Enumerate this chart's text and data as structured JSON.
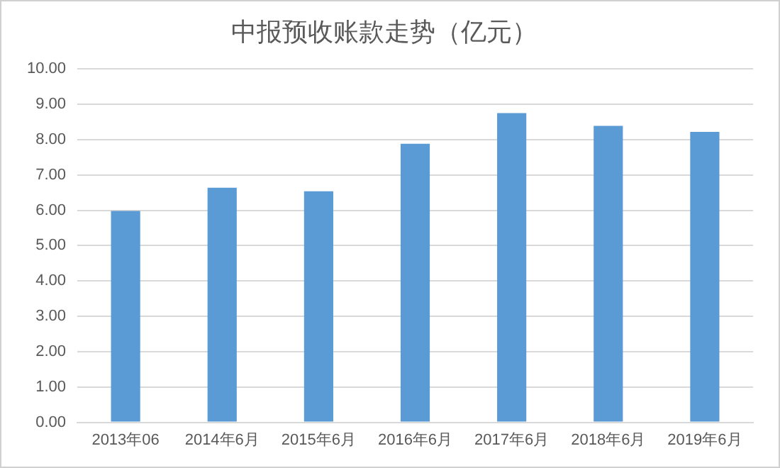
{
  "chart_data": {
    "type": "bar",
    "title": "中报预收账款走势（亿元）",
    "categories": [
      "2013年06",
      "2014年6月",
      "2015年6月",
      "2016年6月",
      "2017年6月",
      "2018年6月",
      "2019年6月"
    ],
    "values": [
      5.98,
      6.64,
      6.54,
      7.88,
      8.75,
      8.39,
      8.22
    ],
    "color": "#5b9bd5",
    "ylim": [
      0,
      10
    ],
    "yticks": [
      {
        "value": 0,
        "label": "0.00"
      },
      {
        "value": 1,
        "label": "1.00"
      },
      {
        "value": 2,
        "label": "2.00"
      },
      {
        "value": 3,
        "label": "3.00"
      },
      {
        "value": 4,
        "label": "4.00"
      },
      {
        "value": 5,
        "label": "5.00"
      },
      {
        "value": 6,
        "label": "6.00"
      },
      {
        "value": 7,
        "label": "7.00"
      },
      {
        "value": 8,
        "label": "8.00"
      },
      {
        "value": 9,
        "label": "9.00"
      },
      {
        "value": 10,
        "label": "10.00"
      }
    ],
    "grid": "y"
  }
}
